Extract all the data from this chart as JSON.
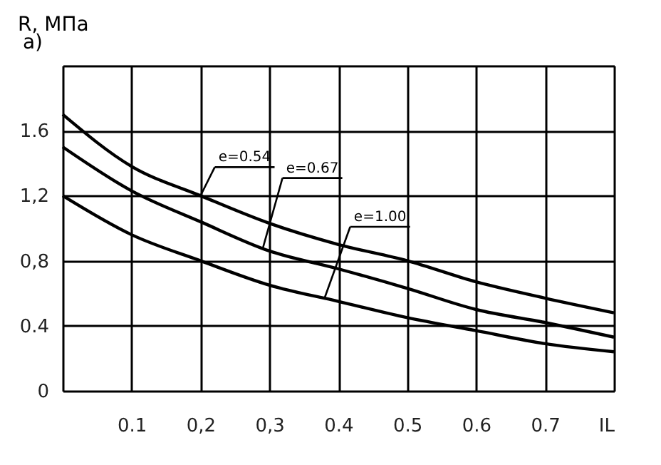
{
  "chart_data": {
    "type": "line",
    "ylabel": "R, МПа",
    "x": [
      0,
      0.1,
      0.2,
      0.3,
      0.4,
      0.5,
      0.6,
      0.7,
      0.8
    ],
    "series": [
      {
        "color": "#000000",
        "values": [
          1.7,
          1.38,
          1.2,
          1.03,
          0.9,
          0.8,
          0.67,
          0.57,
          0.48
        ]
      },
      {
        "color": "#000000",
        "values": [
          1.5,
          1.23,
          1.04,
          0.86,
          0.75,
          0.63,
          0.5,
          0.42,
          0.33
        ]
      },
      {
        "color": "#000000",
        "values": [
          1.2,
          0.96,
          0.8,
          0.65,
          0.55,
          0.45,
          0.37,
          0.29,
          0.24
        ]
      }
    ],
    "xlim": [
      0,
      0.8
    ],
    "ylim": [
      0,
      2.0
    ],
    "xticks": [
      {
        "value": 0,
        "label": null
      },
      0.1,
      {
        "value": 0.2,
        "label": "0,2"
      },
      {
        "value": 0.3,
        "label": "0,3"
      },
      0.4,
      0.5,
      0.6,
      0.7,
      {
        "value": 0.8,
        "label": "IL"
      }
    ],
    "yticks": [
      0,
      0.4,
      {
        "value": 0.8,
        "label": "0,8"
      },
      {
        "value": 1.2,
        "label": "1,2"
      },
      1.6,
      {
        "value": 2.0,
        "label": null
      }
    ],
    "annotations": [
      "a)",
      {
        "text": "e=0.54",
        "x": 0.2,
        "y": 1.2
      },
      {
        "text": "e=0.67",
        "x": 0.29,
        "y": 0.87
      },
      {
        "text": "e=1.00",
        "x": 0.38,
        "y": 0.57
      }
    ],
    "grid": true,
    "marker": "none",
    "line_style": "solid"
  }
}
